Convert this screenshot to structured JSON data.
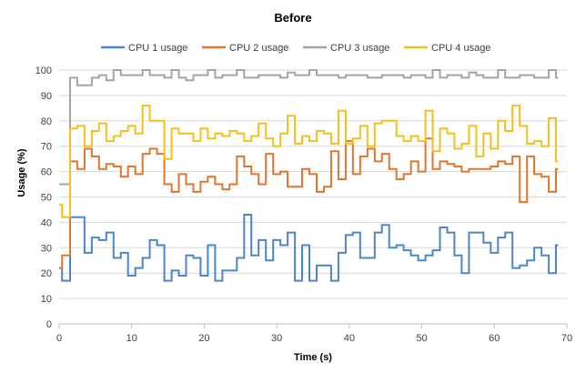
{
  "chart_data": {
    "type": "line",
    "title": "Before",
    "xlabel": "Time (s)",
    "ylabel": "Usage (%)",
    "xlim": [
      0,
      70
    ],
    "ylim": [
      0,
      100
    ],
    "x_ticks": [
      0,
      10,
      20,
      30,
      40,
      50,
      60,
      70
    ],
    "y_ticks": [
      0,
      10,
      20,
      30,
      40,
      50,
      60,
      70,
      80,
      90,
      100
    ],
    "grid": true,
    "legend_position": "top",
    "step_interpolation": true,
    "series": [
      {
        "name": "CPU 1 usage",
        "color": "#4a86c8",
        "points": [
          [
            0,
            22
          ],
          [
            0.4,
            17
          ],
          [
            1.5,
            42
          ],
          [
            3.5,
            28
          ],
          [
            4.5,
            34
          ],
          [
            5.5,
            33
          ],
          [
            6.5,
            36
          ],
          [
            7.5,
            26
          ],
          [
            8.5,
            28
          ],
          [
            9.5,
            19
          ],
          [
            10.5,
            22
          ],
          [
            11.5,
            26
          ],
          [
            12.5,
            33
          ],
          [
            13.5,
            31
          ],
          [
            14.5,
            17
          ],
          [
            15.5,
            21
          ],
          [
            16.5,
            19
          ],
          [
            17.5,
            27
          ],
          [
            18.5,
            26
          ],
          [
            19.5,
            19
          ],
          [
            20.5,
            31
          ],
          [
            21.5,
            17
          ],
          [
            22.5,
            21
          ],
          [
            23.5,
            21
          ],
          [
            24.5,
            26
          ],
          [
            25.5,
            43
          ],
          [
            26.5,
            27
          ],
          [
            27.5,
            33
          ],
          [
            28.5,
            25
          ],
          [
            29.5,
            33
          ],
          [
            30.5,
            31
          ],
          [
            31.5,
            36
          ],
          [
            32.5,
            17
          ],
          [
            33.5,
            31
          ],
          [
            34.5,
            17
          ],
          [
            35.5,
            23
          ],
          [
            37.5,
            17
          ],
          [
            38.5,
            28
          ],
          [
            39.5,
            35
          ],
          [
            40.5,
            36
          ],
          [
            41.5,
            26
          ],
          [
            43.5,
            36
          ],
          [
            44.5,
            39
          ],
          [
            45.5,
            30
          ],
          [
            46.5,
            31
          ],
          [
            47.5,
            29
          ],
          [
            48.5,
            27
          ],
          [
            49.5,
            25
          ],
          [
            50.5,
            27
          ],
          [
            51.5,
            29
          ],
          [
            52.5,
            38
          ],
          [
            53.5,
            36
          ],
          [
            54.5,
            27
          ],
          [
            55.5,
            20
          ],
          [
            56.5,
            36
          ],
          [
            58.5,
            32
          ],
          [
            59.5,
            28
          ],
          [
            60.5,
            34
          ],
          [
            61.5,
            36
          ],
          [
            62.5,
            22
          ],
          [
            63.5,
            23
          ],
          [
            64.5,
            25
          ],
          [
            65.5,
            30
          ],
          [
            66.5,
            27
          ],
          [
            67.5,
            20
          ],
          [
            68.5,
            31
          ]
        ]
      },
      {
        "name": "CPU 2 usage",
        "color": "#e0762f",
        "points": [
          [
            0,
            22
          ],
          [
            0.4,
            27
          ],
          [
            1.5,
            64
          ],
          [
            2.5,
            61
          ],
          [
            3.5,
            69
          ],
          [
            4.5,
            66
          ],
          [
            5.5,
            61
          ],
          [
            6.5,
            63
          ],
          [
            7.5,
            62
          ],
          [
            8.5,
            58
          ],
          [
            9.5,
            62
          ],
          [
            10.5,
            59
          ],
          [
            11.5,
            67
          ],
          [
            12.5,
            69
          ],
          [
            13.5,
            67
          ],
          [
            14.5,
            55
          ],
          [
            15.5,
            52
          ],
          [
            16.5,
            59
          ],
          [
            17.5,
            55
          ],
          [
            18.5,
            52
          ],
          [
            19.5,
            56
          ],
          [
            20.5,
            58
          ],
          [
            21.5,
            55
          ],
          [
            22.5,
            53
          ],
          [
            23.5,
            55
          ],
          [
            24.5,
            66
          ],
          [
            25.5,
            62
          ],
          [
            26.5,
            59
          ],
          [
            27.5,
            55
          ],
          [
            28.5,
            67
          ],
          [
            29.5,
            59
          ],
          [
            30.5,
            60
          ],
          [
            31.5,
            54
          ],
          [
            33.5,
            61
          ],
          [
            34.5,
            59
          ],
          [
            35.5,
            52
          ],
          [
            36.5,
            54
          ],
          [
            37.5,
            68
          ],
          [
            38.5,
            57
          ],
          [
            39.5,
            72
          ],
          [
            40.5,
            59
          ],
          [
            41.5,
            66
          ],
          [
            42.5,
            69
          ],
          [
            43.5,
            64
          ],
          [
            44.5,
            67
          ],
          [
            45.5,
            61
          ],
          [
            46.5,
            57
          ],
          [
            47.5,
            59
          ],
          [
            48.5,
            64
          ],
          [
            49.5,
            60
          ],
          [
            50.5,
            73
          ],
          [
            51.5,
            61
          ],
          [
            52.5,
            64
          ],
          [
            53.5,
            63
          ],
          [
            54.5,
            62
          ],
          [
            55.5,
            60
          ],
          [
            56.5,
            61
          ],
          [
            59.5,
            62
          ],
          [
            60.5,
            64
          ],
          [
            61.5,
            63
          ],
          [
            62.5,
            66
          ],
          [
            63.5,
            48
          ],
          [
            64.5,
            66
          ],
          [
            65.5,
            59
          ],
          [
            66.5,
            58
          ],
          [
            67.5,
            52
          ],
          [
            68.5,
            61
          ]
        ]
      },
      {
        "name": "CPU 3 usage",
        "color": "#a5a5a5",
        "points": [
          [
            0,
            55
          ],
          [
            1.5,
            97
          ],
          [
            2.5,
            94
          ],
          [
            4.5,
            97
          ],
          [
            5.5,
            98
          ],
          [
            6.5,
            96
          ],
          [
            7.5,
            100
          ],
          [
            8.5,
            98
          ],
          [
            11.5,
            100
          ],
          [
            12.5,
            98
          ],
          [
            14.5,
            97
          ],
          [
            15.5,
            100
          ],
          [
            16.5,
            97
          ],
          [
            17.5,
            96
          ],
          [
            18.5,
            98
          ],
          [
            20.5,
            100
          ],
          [
            21.5,
            97
          ],
          [
            22.5,
            98
          ],
          [
            24.5,
            100
          ],
          [
            25.5,
            97
          ],
          [
            27.5,
            98
          ],
          [
            30.5,
            97
          ],
          [
            31.5,
            99
          ],
          [
            32.5,
            98
          ],
          [
            34.5,
            100
          ],
          [
            35.5,
            98
          ],
          [
            38.5,
            97
          ],
          [
            39.5,
            98
          ],
          [
            42.5,
            97
          ],
          [
            44.5,
            98
          ],
          [
            47.5,
            97
          ],
          [
            48.5,
            98
          ],
          [
            50.5,
            97
          ],
          [
            51.5,
            100
          ],
          [
            52.5,
            97
          ],
          [
            53.5,
            98
          ],
          [
            55.5,
            97
          ],
          [
            56.5,
            99
          ],
          [
            57.5,
            98
          ],
          [
            58.5,
            97
          ],
          [
            60.5,
            100
          ],
          [
            61.5,
            97
          ],
          [
            63.5,
            98
          ],
          [
            65.5,
            97
          ],
          [
            67.5,
            100
          ],
          [
            68.5,
            97
          ]
        ]
      },
      {
        "name": "CPU 4 usage",
        "color": "#f4c11c",
        "points": [
          [
            0,
            47
          ],
          [
            0.4,
            42
          ],
          [
            1.5,
            77
          ],
          [
            2.5,
            78
          ],
          [
            3.5,
            70
          ],
          [
            4.5,
            76
          ],
          [
            5.5,
            79
          ],
          [
            6.5,
            72
          ],
          [
            7.5,
            74
          ],
          [
            8.5,
            76
          ],
          [
            9.5,
            78
          ],
          [
            10.5,
            75
          ],
          [
            11.5,
            86
          ],
          [
            12.5,
            80
          ],
          [
            14.5,
            65
          ],
          [
            15.5,
            77
          ],
          [
            16.5,
            75
          ],
          [
            18.5,
            72
          ],
          [
            19.5,
            77
          ],
          [
            20.5,
            73
          ],
          [
            21.5,
            75
          ],
          [
            22.5,
            74
          ],
          [
            23.5,
            76
          ],
          [
            24.5,
            75
          ],
          [
            25.5,
            72
          ],
          [
            26.5,
            74
          ],
          [
            27.5,
            79
          ],
          [
            28.5,
            73
          ],
          [
            29.5,
            70
          ],
          [
            30.5,
            75
          ],
          [
            31.5,
            82
          ],
          [
            32.5,
            71
          ],
          [
            33.5,
            74
          ],
          [
            34.5,
            72
          ],
          [
            35.5,
            76
          ],
          [
            36.5,
            75
          ],
          [
            37.5,
            71
          ],
          [
            38.5,
            84
          ],
          [
            39.5,
            71
          ],
          [
            40.5,
            73
          ],
          [
            41.5,
            78
          ],
          [
            42.5,
            70
          ],
          [
            43.5,
            79
          ],
          [
            44.5,
            80
          ],
          [
            46.5,
            74
          ],
          [
            47.5,
            72
          ],
          [
            48.5,
            74
          ],
          [
            49.5,
            72
          ],
          [
            50.5,
            84
          ],
          [
            51.5,
            68
          ],
          [
            52.5,
            77
          ],
          [
            53.5,
            75
          ],
          [
            54.5,
            69
          ],
          [
            55.5,
            71
          ],
          [
            56.5,
            78
          ],
          [
            57.5,
            66
          ],
          [
            58.5,
            75
          ],
          [
            59.5,
            69
          ],
          [
            60.5,
            80
          ],
          [
            61.5,
            76
          ],
          [
            62.5,
            86
          ],
          [
            63.5,
            78
          ],
          [
            64.5,
            71
          ],
          [
            65.5,
            72
          ],
          [
            66.5,
            70
          ],
          [
            67.5,
            81
          ],
          [
            68.5,
            64
          ]
        ]
      }
    ]
  }
}
